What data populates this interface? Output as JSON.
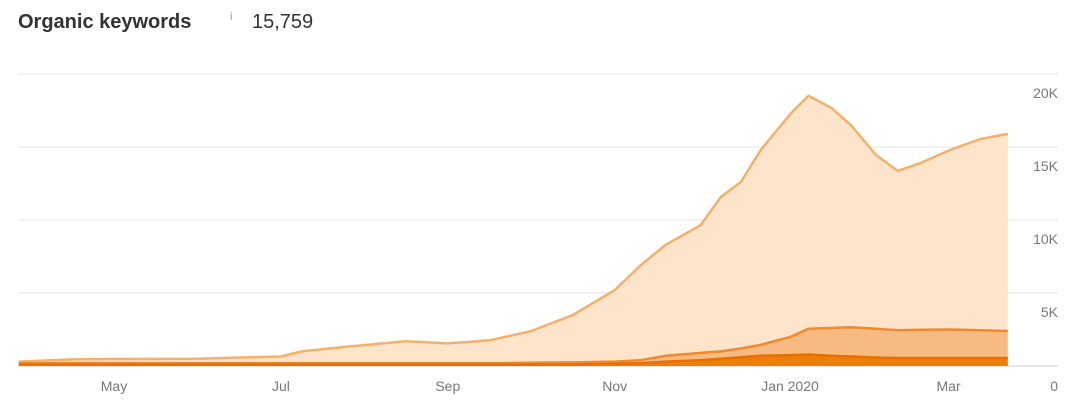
{
  "chart_data": {
    "type": "stacked-area",
    "title": "Organic keywords",
    "info": "i",
    "summary_value": "15,759",
    "x": [
      3.86,
      4.5,
      5,
      6,
      7,
      7.25,
      7.75,
      8.5,
      9,
      9.5,
      10,
      10.5,
      11,
      11.31,
      11.61,
      12.03,
      12.27,
      12.51,
      12.75,
      13.11,
      13.32,
      13.59,
      13.83,
      14.13,
      14.39,
      14.66,
      15.02,
      15.38,
      15.71
    ],
    "series": [
      {
        "color": "#ef7d0c",
        "line_color": "#e86f00",
        "values": [
          100,
          100,
          100,
          100,
          100,
          100,
          100,
          100,
          100,
          100,
          100,
          100,
          150,
          200,
          300,
          400,
          500,
          600,
          700,
          750,
          780,
          700,
          650,
          580,
          550,
          550,
          550,
          550,
          550
        ]
      },
      {
        "color": "#f7bb82",
        "line_color": "#f08a2c",
        "values": [
          100,
          100,
          100,
          100,
          100,
          100,
          100,
          100,
          100,
          100,
          120,
          150,
          150,
          200,
          400,
          500,
          500,
          600,
          750,
          1250,
          1770,
          1900,
          2000,
          1970,
          1900,
          1930,
          1950,
          1900,
          1850
        ]
      },
      {
        "color": "#fde4cb",
        "line_color": "#f5b06a",
        "values": [
          100,
          250,
          280,
          300,
          450,
          800,
          1100,
          1500,
          1350,
          1550,
          2180,
          3250,
          4900,
          6500,
          7600,
          8750,
          10570,
          11400,
          13350,
          15300,
          15950,
          15100,
          13850,
          11900,
          10910,
          11420,
          12300,
          13100,
          13500
        ]
      }
    ],
    "xlim": [
      3.85,
      15.7
    ],
    "xticks": [
      {
        "value": 5,
        "label": "May"
      },
      {
        "value": 7,
        "label": "Jul"
      },
      {
        "value": 9,
        "label": "Sep"
      },
      {
        "value": 11,
        "label": "Nov"
      },
      {
        "value": 13.1,
        "label": "Jan 2020"
      },
      {
        "value": 15,
        "label": "Mar"
      }
    ],
    "ylim": [
      0,
      20000
    ],
    "yticks": [
      {
        "value": 0,
        "label": "0"
      },
      {
        "value": 5000,
        "label": "5K"
      },
      {
        "value": 10000,
        "label": "10K"
      },
      {
        "value": 15000,
        "label": "15K"
      },
      {
        "value": 20000,
        "label": "20K"
      }
    ],
    "grid": true
  }
}
